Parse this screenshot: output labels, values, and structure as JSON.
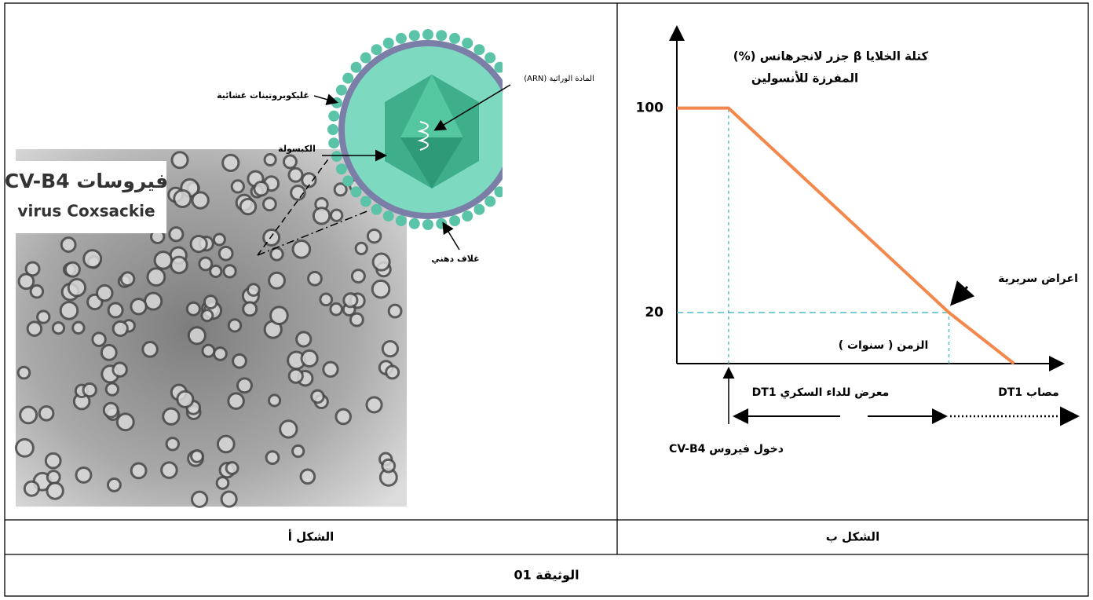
{
  "figure_a": {
    "title_ar": "فيروسات CV-B4",
    "title_lat": "virus Coxsackie",
    "label_glycoproteins": "غليكوبروتينات غشائية",
    "label_genetic": "المادة الوراثية (ARN)",
    "label_capsid": "الكبسولة",
    "label_envelope": "غلاف دهني"
  },
  "figure_b": {
    "y_label_line1": "كتلة الخلايا β جزر لانجرهانس (%)",
    "y_label_line2": "المفرزة للأنسولين",
    "ylim": [
      0,
      130
    ],
    "yticks": [
      20,
      100
    ],
    "xlim": [
      0,
      100
    ],
    "x": [
      0,
      13.5,
      71,
      88
    ],
    "values": [
      100,
      100,
      20,
      0
    ],
    "color": "#f4874b",
    "x_label": "الزمن ( سنوات )",
    "annotation": "اعراض سريرية",
    "phase_exposed": "معرض للداء السكري DT1",
    "phase_ill": "مصاب DT1",
    "virus_entry": "دخول فيروس CV-B4"
  },
  "captions": {
    "a": "الشكل أ",
    "b": "الشكل ب"
  },
  "document_title": "الوثيقة 01"
}
